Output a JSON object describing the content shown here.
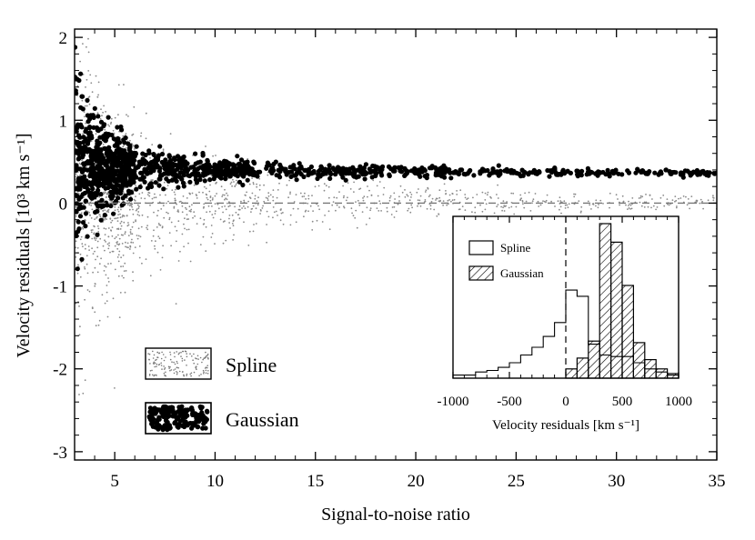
{
  "chart_data": [
    {
      "type": "scatter",
      "xlabel": "Signal-to-noise ratio",
      "ylabel": "Velocity residuals  [10³ km s⁻¹]",
      "xlim": [
        3,
        35
      ],
      "ylim": [
        -3.1,
        2.1
      ],
      "xticks": [
        5,
        10,
        15,
        20,
        25,
        30,
        35
      ],
      "yticks": [
        -3,
        -2,
        -1,
        0,
        1,
        2
      ],
      "reference_line_y": 0,
      "legend": {
        "placement": "bottom-left",
        "entries": [
          "Spline",
          "Gaussian"
        ]
      },
      "series": [
        {
          "name": "Spline",
          "marker": "small grey dots",
          "trend": {
            "x": [
              3,
              4,
              5,
              6,
              7,
              8,
              10,
              12,
              15,
              18,
              20,
              25,
              30,
              35
            ],
            "center": [
              0.1,
              0.1,
              0.08,
              0.06,
              0.05,
              0.05,
              0.04,
              0.03,
              0.03,
              0.02,
              0.02,
              0.02,
              0.01,
              0.01
            ],
            "spread": [
              1.6,
              1.25,
              1.0,
              0.85,
              0.7,
              0.6,
              0.45,
              0.36,
              0.28,
              0.22,
              0.19,
              0.14,
              0.1,
              0.08
            ]
          }
        },
        {
          "name": "Gaussian",
          "marker": "large black dots",
          "trend": {
            "x": [
              3,
              4,
              5,
              6,
              7,
              8,
              10,
              12,
              15,
              18,
              20,
              25,
              30,
              35
            ],
            "center": [
              0.45,
              0.45,
              0.44,
              0.43,
              0.42,
              0.41,
              0.4,
              0.4,
              0.39,
              0.38,
              0.38,
              0.37,
              0.37,
              0.36
            ],
            "spread": [
              0.9,
              0.6,
              0.38,
              0.26,
              0.2,
              0.16,
              0.12,
              0.1,
              0.08,
              0.07,
              0.06,
              0.05,
              0.04,
              0.03
            ]
          }
        }
      ]
    },
    {
      "type": "histogram",
      "xlabel": "Velocity residuals  [km s⁻¹]",
      "xlim": [
        -1000,
        1000
      ],
      "xticks": [
        -1000,
        -500,
        0,
        500,
        1000
      ],
      "reference_line_x": 0,
      "legend": {
        "placement": "top-left",
        "entries": [
          "Spline",
          "Gaussian"
        ]
      },
      "bin_edges": [
        -1000,
        -900,
        -800,
        -700,
        -600,
        -500,
        -400,
        -300,
        -200,
        -100,
        0,
        100,
        200,
        300,
        400,
        500,
        600,
        700,
        800,
        900,
        1000
      ],
      "series": [
        {
          "name": "Spline",
          "style": "open",
          "counts": [
            0.02,
            0.02,
            0.04,
            0.05,
            0.07,
            0.1,
            0.15,
            0.2,
            0.27,
            0.36,
            0.57,
            0.53,
            0.22,
            0.15,
            0.14,
            0.14,
            0.1,
            0.06,
            0.04,
            0.02
          ]
        },
        {
          "name": "Gaussian",
          "style": "hatched",
          "counts": [
            0,
            0,
            0,
            0,
            0,
            0,
            0,
            0,
            0,
            0,
            0.06,
            0.13,
            0.24,
            1.0,
            0.88,
            0.6,
            0.23,
            0.12,
            0.06,
            0.03
          ]
        }
      ]
    }
  ]
}
